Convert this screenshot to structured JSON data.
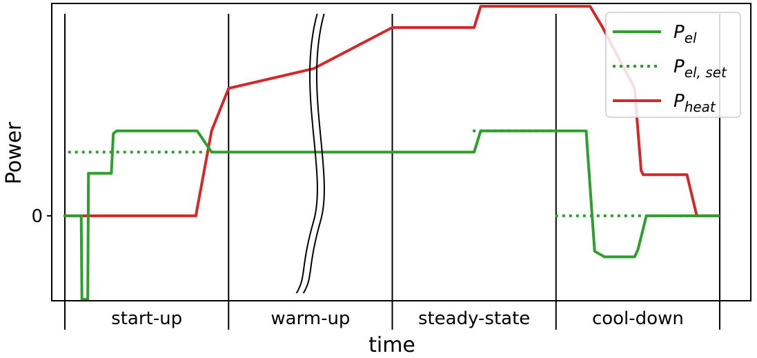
{
  "chart_data": {
    "type": "line",
    "xlabel": "time",
    "ylabel": "Power",
    "yticks": [
      "0"
    ],
    "xlim": [
      0,
      100
    ],
    "ylim": [
      -3,
      7.5
    ],
    "phases": [
      {
        "label": "start-up",
        "start": 0,
        "end": 25
      },
      {
        "label": "warm-up",
        "start": 25,
        "end": 50
      },
      {
        "label": "steady-state",
        "start": 50,
        "end": 75
      },
      {
        "label": "cool-down",
        "start": 75,
        "end": 100
      }
    ],
    "series": [
      {
        "name": "P_el",
        "base": "P",
        "sub": "el",
        "style": "solid",
        "color": "#2ca02c",
        "x": [
          -0.2,
          2.5,
          2.6,
          3.5,
          3.6,
          7.1,
          7.4,
          7.9,
          8.2,
          20.2,
          22.4,
          28,
          50,
          62.5,
          63.5,
          79.6,
          80.9,
          82.4,
          87,
          87.5,
          88.8,
          98,
          100
        ],
        "y": [
          0,
          0,
          -2.95,
          -2.95,
          1.5,
          1.5,
          2.9,
          3.0,
          3.0,
          3.0,
          2.25,
          2.25,
          2.25,
          2.25,
          3.0,
          3.0,
          -1.25,
          -1.45,
          -1.45,
          -1.2,
          0,
          0,
          0
        ]
      },
      {
        "name": "P_el,set",
        "base": "P",
        "sub": "el, set",
        "style": "dotted",
        "color": "#2ca02c",
        "x": [
          0.5,
          62.3,
          62.3,
          74.9,
          74.9,
          100
        ],
        "y": [
          2.25,
          2.25,
          3.0,
          3.0,
          0,
          0
        ],
        "segments": [
          [
            0,
            1
          ],
          [
            2,
            3
          ],
          [
            4,
            5
          ]
        ]
      },
      {
        "name": "P_heat",
        "base": "P",
        "sub": "heat",
        "style": "solid",
        "color": "#d62728",
        "x": [
          -0.2,
          20,
          22.4,
          25,
          38,
          50,
          62.5,
          63.5,
          75,
          80.2,
          82,
          87,
          88,
          88.3,
          95,
          96.5,
          100
        ],
        "y": [
          0,
          0,
          3.0,
          4.5,
          5.2,
          6.65,
          6.65,
          7.4,
          7.4,
          7.4,
          6.7,
          4.5,
          1.6,
          1.45,
          1.45,
          0,
          0
        ]
      }
    ],
    "legend": "top-right"
  }
}
